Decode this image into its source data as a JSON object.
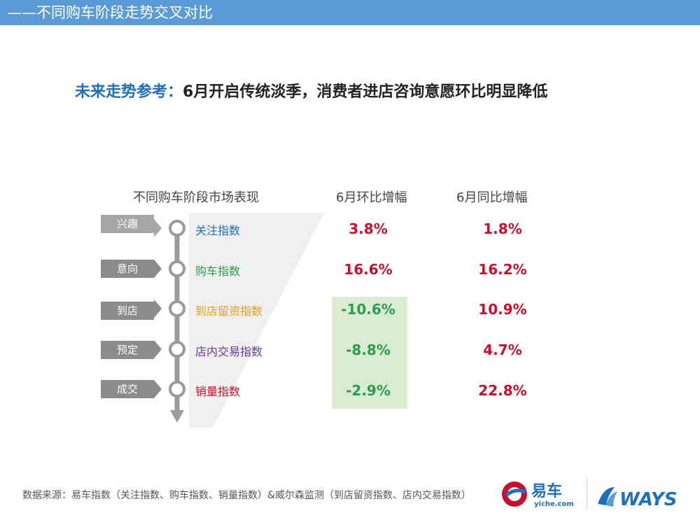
{
  "header": {
    "title": "——不同购车阶段走势交叉对比"
  },
  "headline": {
    "prefix": "未来走势参考：",
    "text": "6月开启传统淡季，消费者进店咨询意愿环比明显降低"
  },
  "table": {
    "columns": [
      "不同购车阶段市场表现",
      "6月环比增幅",
      "6月同比增幅"
    ],
    "rows": [
      {
        "stage": "兴趣",
        "index": "关注指数",
        "index_color": "#1f70b8",
        "mom": "3.8%",
        "yoy": "1.8%"
      },
      {
        "stage": "意向",
        "index": "购车指数",
        "index_color": "#2e9b4e",
        "mom": "16.6%",
        "yoy": "16.2%"
      },
      {
        "stage": "到店",
        "index": "到店留资指数",
        "index_color": "#e8a20c",
        "mom": "-10.6%",
        "yoy": "10.9%"
      },
      {
        "stage": "预定",
        "index": "店内交易指数",
        "index_color": "#6a3d9a",
        "mom": "-8.8%",
        "yoy": "4.7%"
      },
      {
        "stage": "成交",
        "index": "销量指数",
        "index_color": "#c8102e",
        "mom": "-2.9%",
        "yoy": "22.8%"
      }
    ]
  },
  "footer": {
    "source": "数据来源：易车指数（关注指数、购车指数、销量指数）&威尔森监测（到店留资指数、店内交易指数）"
  },
  "logos": {
    "yiche_main": "易车",
    "yiche_sub": "yiche.com",
    "ways": "WAYS"
  },
  "colors": {
    "header_bg": "#5b9bd5",
    "positive": "#c8102e",
    "negative": "#2e9b4e",
    "highlight_bg": "#d7ecd1"
  }
}
